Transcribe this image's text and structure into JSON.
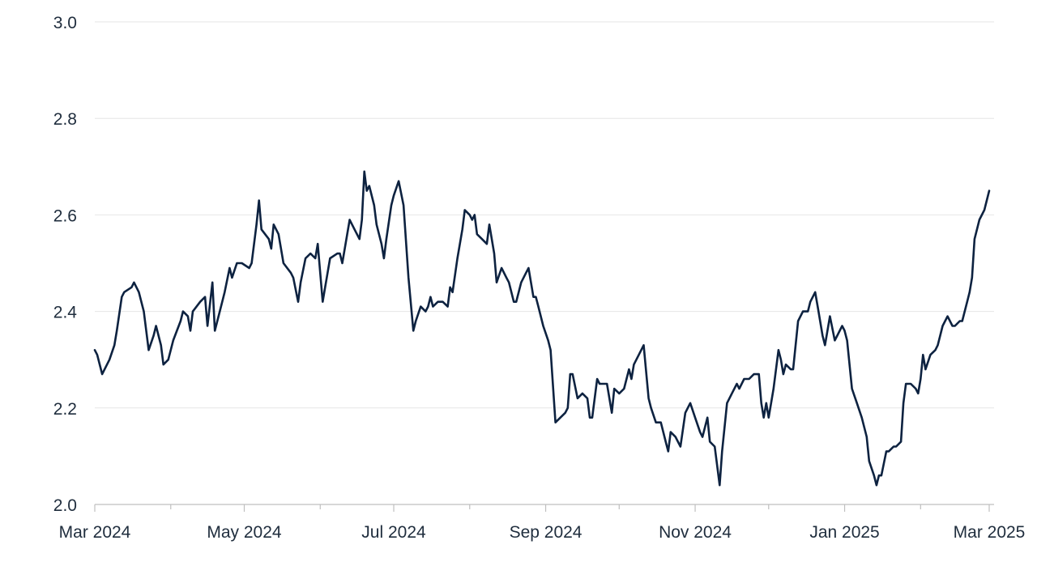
{
  "chart_data": {
    "type": "line",
    "title": "",
    "xlabel": "",
    "ylabel": "",
    "x_range": [
      "2024-03-01",
      "2025-03-01"
    ],
    "ylim": [
      2.0,
      3.0
    ],
    "y_ticks": [
      "2.0",
      "2.2",
      "2.4",
      "2.6",
      "2.8",
      "3.0"
    ],
    "x_ticks": [
      {
        "label": "Mar 2024",
        "date": "2024-03-01"
      },
      {
        "label": "May 2024",
        "date": "2024-05-01"
      },
      {
        "label": "Jul 2024",
        "date": "2024-07-01"
      },
      {
        "label": "Sep 2024",
        "date": "2024-09-01"
      },
      {
        "label": "Nov 2024",
        "date": "2024-11-01"
      },
      {
        "label": "Jan 2025",
        "date": "2025-01-01"
      },
      {
        "label": "Mar 2025",
        "date": "2025-03-01"
      }
    ],
    "x_minor_ticks": [
      "2024-04-01",
      "2024-06-01",
      "2024-08-01",
      "2024-10-01",
      "2024-12-01",
      "2025-02-01"
    ],
    "grid": "horizontal",
    "legend": "none",
    "colors": {
      "line": "#0d2240",
      "grid": "#e6e6e6",
      "axis": "#bfbfbf",
      "text": "#1f2d3d"
    },
    "series": [
      {
        "points": [
          [
            "2024-03-01",
            2.32
          ],
          [
            "2024-03-02",
            2.31
          ],
          [
            "2024-03-04",
            2.27
          ],
          [
            "2024-03-07",
            2.3
          ],
          [
            "2024-03-09",
            2.33
          ],
          [
            "2024-03-10",
            2.36
          ],
          [
            "2024-03-12",
            2.43
          ],
          [
            "2024-03-13",
            2.44
          ],
          [
            "2024-03-16",
            2.45
          ],
          [
            "2024-03-17",
            2.46
          ],
          [
            "2024-03-19",
            2.44
          ],
          [
            "2024-03-21",
            2.4
          ],
          [
            "2024-03-23",
            2.32
          ],
          [
            "2024-03-25",
            2.35
          ],
          [
            "2024-03-26",
            2.37
          ],
          [
            "2024-03-28",
            2.33
          ],
          [
            "2024-03-29",
            2.29
          ],
          [
            "2024-03-31",
            2.3
          ],
          [
            "2024-04-02",
            2.34
          ],
          [
            "2024-04-05",
            2.38
          ],
          [
            "2024-04-06",
            2.4
          ],
          [
            "2024-04-08",
            2.39
          ],
          [
            "2024-04-09",
            2.36
          ],
          [
            "2024-04-10",
            2.4
          ],
          [
            "2024-04-13",
            2.42
          ],
          [
            "2024-04-15",
            2.43
          ],
          [
            "2024-04-16",
            2.37
          ],
          [
            "2024-04-18",
            2.46
          ],
          [
            "2024-04-19",
            2.36
          ],
          [
            "2024-04-22",
            2.42
          ],
          [
            "2024-04-23",
            2.44
          ],
          [
            "2024-04-25",
            2.49
          ],
          [
            "2024-04-26",
            2.47
          ],
          [
            "2024-04-28",
            2.5
          ],
          [
            "2024-04-30",
            2.5
          ],
          [
            "2024-05-03",
            2.49
          ],
          [
            "2024-05-04",
            2.5
          ],
          [
            "2024-05-06",
            2.58
          ],
          [
            "2024-05-07",
            2.63
          ],
          [
            "2024-05-08",
            2.57
          ],
          [
            "2024-05-11",
            2.55
          ],
          [
            "2024-05-12",
            2.53
          ],
          [
            "2024-05-13",
            2.58
          ],
          [
            "2024-05-15",
            2.56
          ],
          [
            "2024-05-17",
            2.5
          ],
          [
            "2024-05-20",
            2.48
          ],
          [
            "2024-05-21",
            2.47
          ],
          [
            "2024-05-23",
            2.42
          ],
          [
            "2024-05-24",
            2.46
          ],
          [
            "2024-05-26",
            2.51
          ],
          [
            "2024-05-28",
            2.52
          ],
          [
            "2024-05-30",
            2.51
          ],
          [
            "2024-05-31",
            2.54
          ],
          [
            "2024-06-02",
            2.42
          ],
          [
            "2024-06-03",
            2.45
          ],
          [
            "2024-06-05",
            2.51
          ],
          [
            "2024-06-08",
            2.52
          ],
          [
            "2024-06-09",
            2.52
          ],
          [
            "2024-06-10",
            2.5
          ],
          [
            "2024-06-13",
            2.59
          ],
          [
            "2024-06-15",
            2.57
          ],
          [
            "2024-06-17",
            2.55
          ],
          [
            "2024-06-18",
            2.59
          ],
          [
            "2024-06-19",
            2.69
          ],
          [
            "2024-06-20",
            2.65
          ],
          [
            "2024-06-21",
            2.66
          ],
          [
            "2024-06-23",
            2.62
          ],
          [
            "2024-06-24",
            2.58
          ],
          [
            "2024-06-26",
            2.54
          ],
          [
            "2024-06-27",
            2.51
          ],
          [
            "2024-06-28",
            2.55
          ],
          [
            "2024-06-30",
            2.62
          ],
          [
            "2024-07-01",
            2.64
          ],
          [
            "2024-07-03",
            2.67
          ],
          [
            "2024-07-05",
            2.62
          ],
          [
            "2024-07-07",
            2.47
          ],
          [
            "2024-07-09",
            2.36
          ],
          [
            "2024-07-10",
            2.38
          ],
          [
            "2024-07-12",
            2.41
          ],
          [
            "2024-07-14",
            2.4
          ],
          [
            "2024-07-15",
            2.41
          ],
          [
            "2024-07-16",
            2.43
          ],
          [
            "2024-07-17",
            2.41
          ],
          [
            "2024-07-19",
            2.42
          ],
          [
            "2024-07-20",
            2.42
          ],
          [
            "2024-07-21",
            2.42
          ],
          [
            "2024-07-23",
            2.41
          ],
          [
            "2024-07-24",
            2.45
          ],
          [
            "2024-07-25",
            2.44
          ],
          [
            "2024-07-27",
            2.51
          ],
          [
            "2024-07-29",
            2.57
          ],
          [
            "2024-07-30",
            2.61
          ],
          [
            "2024-08-01",
            2.6
          ],
          [
            "2024-08-02",
            2.59
          ],
          [
            "2024-08-03",
            2.6
          ],
          [
            "2024-08-04",
            2.56
          ],
          [
            "2024-08-06",
            2.55
          ],
          [
            "2024-08-08",
            2.54
          ],
          [
            "2024-08-09",
            2.58
          ],
          [
            "2024-08-11",
            2.52
          ],
          [
            "2024-08-12",
            2.46
          ],
          [
            "2024-08-14",
            2.49
          ],
          [
            "2024-08-16",
            2.47
          ],
          [
            "2024-08-17",
            2.46
          ],
          [
            "2024-08-19",
            2.42
          ],
          [
            "2024-08-20",
            2.42
          ],
          [
            "2024-08-22",
            2.46
          ],
          [
            "2024-08-24",
            2.48
          ],
          [
            "2024-08-25",
            2.49
          ],
          [
            "2024-08-27",
            2.43
          ],
          [
            "2024-08-28",
            2.43
          ],
          [
            "2024-08-29",
            2.41
          ],
          [
            "2024-08-31",
            2.37
          ],
          [
            "2024-09-02",
            2.34
          ],
          [
            "2024-09-03",
            2.32
          ],
          [
            "2024-09-05",
            2.17
          ],
          [
            "2024-09-07",
            2.18
          ],
          [
            "2024-09-09",
            2.19
          ],
          [
            "2024-09-10",
            2.2
          ],
          [
            "2024-09-11",
            2.27
          ],
          [
            "2024-09-12",
            2.27
          ],
          [
            "2024-09-14",
            2.22
          ],
          [
            "2024-09-16",
            2.23
          ],
          [
            "2024-09-18",
            2.22
          ],
          [
            "2024-09-19",
            2.18
          ],
          [
            "2024-09-20",
            2.18
          ],
          [
            "2024-09-22",
            2.26
          ],
          [
            "2024-09-23",
            2.25
          ],
          [
            "2024-09-25",
            2.25
          ],
          [
            "2024-09-26",
            2.25
          ],
          [
            "2024-09-28",
            2.19
          ],
          [
            "2024-09-29",
            2.24
          ],
          [
            "2024-10-01",
            2.23
          ],
          [
            "2024-10-03",
            2.24
          ],
          [
            "2024-10-05",
            2.28
          ],
          [
            "2024-10-06",
            2.26
          ],
          [
            "2024-10-07",
            2.29
          ],
          [
            "2024-10-09",
            2.31
          ],
          [
            "2024-10-11",
            2.33
          ],
          [
            "2024-10-13",
            2.22
          ],
          [
            "2024-10-14",
            2.2
          ],
          [
            "2024-10-16",
            2.17
          ],
          [
            "2024-10-18",
            2.17
          ],
          [
            "2024-10-20",
            2.13
          ],
          [
            "2024-10-21",
            2.11
          ],
          [
            "2024-10-22",
            2.15
          ],
          [
            "2024-10-24",
            2.14
          ],
          [
            "2024-10-26",
            2.12
          ],
          [
            "2024-10-28",
            2.19
          ],
          [
            "2024-10-30",
            2.21
          ],
          [
            "2024-11-01",
            2.18
          ],
          [
            "2024-11-03",
            2.15
          ],
          [
            "2024-11-04",
            2.14
          ],
          [
            "2024-11-06",
            2.18
          ],
          [
            "2024-11-07",
            2.13
          ],
          [
            "2024-11-09",
            2.12
          ],
          [
            "2024-11-11",
            2.04
          ],
          [
            "2024-11-12",
            2.11
          ],
          [
            "2024-11-14",
            2.21
          ],
          [
            "2024-11-16",
            2.23
          ],
          [
            "2024-11-18",
            2.25
          ],
          [
            "2024-11-19",
            2.24
          ],
          [
            "2024-11-21",
            2.26
          ],
          [
            "2024-11-23",
            2.26
          ],
          [
            "2024-11-25",
            2.27
          ],
          [
            "2024-11-27",
            2.27
          ],
          [
            "2024-11-28",
            2.21
          ],
          [
            "2024-11-29",
            2.18
          ],
          [
            "2024-11-30",
            2.21
          ],
          [
            "2024-12-01",
            2.18
          ],
          [
            "2024-12-03",
            2.24
          ],
          [
            "2024-12-05",
            2.32
          ],
          [
            "2024-12-06",
            2.3
          ],
          [
            "2024-12-07",
            2.27
          ],
          [
            "2024-12-08",
            2.29
          ],
          [
            "2024-12-10",
            2.28
          ],
          [
            "2024-12-11",
            2.28
          ],
          [
            "2024-12-13",
            2.38
          ],
          [
            "2024-12-15",
            2.4
          ],
          [
            "2024-12-17",
            2.4
          ],
          [
            "2024-12-18",
            2.42
          ],
          [
            "2024-12-20",
            2.44
          ],
          [
            "2024-12-21",
            2.41
          ],
          [
            "2024-12-23",
            2.35
          ],
          [
            "2024-12-24",
            2.33
          ],
          [
            "2024-12-26",
            2.39
          ],
          [
            "2024-12-28",
            2.34
          ],
          [
            "2024-12-29",
            2.35
          ],
          [
            "2024-12-31",
            2.37
          ],
          [
            "2025-01-01",
            2.36
          ],
          [
            "2025-01-02",
            2.34
          ],
          [
            "2025-01-04",
            2.24
          ],
          [
            "2025-01-06",
            2.21
          ],
          [
            "2025-01-08",
            2.18
          ],
          [
            "2025-01-10",
            2.14
          ],
          [
            "2025-01-11",
            2.09
          ],
          [
            "2025-01-13",
            2.06
          ],
          [
            "2025-01-14",
            2.04
          ],
          [
            "2025-01-15",
            2.06
          ],
          [
            "2025-01-16",
            2.06
          ],
          [
            "2025-01-18",
            2.11
          ],
          [
            "2025-01-19",
            2.11
          ],
          [
            "2025-01-21",
            2.12
          ],
          [
            "2025-01-22",
            2.12
          ],
          [
            "2025-01-24",
            2.13
          ],
          [
            "2025-01-25",
            2.21
          ],
          [
            "2025-01-26",
            2.25
          ],
          [
            "2025-01-28",
            2.25
          ],
          [
            "2025-01-30",
            2.24
          ],
          [
            "2025-01-31",
            2.23
          ],
          [
            "2025-02-01",
            2.26
          ],
          [
            "2025-02-02",
            2.31
          ],
          [
            "2025-02-03",
            2.28
          ],
          [
            "2025-02-05",
            2.31
          ],
          [
            "2025-02-07",
            2.32
          ],
          [
            "2025-02-08",
            2.33
          ],
          [
            "2025-02-10",
            2.37
          ],
          [
            "2025-02-12",
            2.39
          ],
          [
            "2025-02-14",
            2.37
          ],
          [
            "2025-02-15",
            2.37
          ],
          [
            "2025-02-17",
            2.38
          ],
          [
            "2025-02-18",
            2.38
          ],
          [
            "2025-02-20",
            2.42
          ],
          [
            "2025-02-21",
            2.44
          ],
          [
            "2025-02-22",
            2.47
          ],
          [
            "2025-02-23",
            2.55
          ],
          [
            "2025-02-24",
            2.57
          ],
          [
            "2025-02-25",
            2.59
          ],
          [
            "2025-02-27",
            2.61
          ],
          [
            "2025-02-28",
            2.63
          ],
          [
            "2025-03-01",
            2.65
          ]
        ]
      }
    ]
  }
}
